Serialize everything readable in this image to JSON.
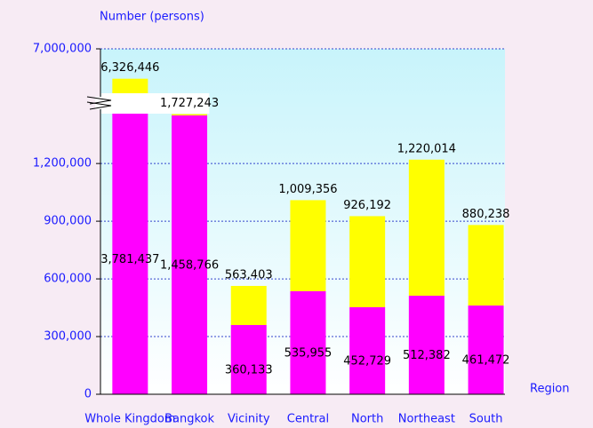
{
  "chart_data": {
    "type": "stacked_bar",
    "y_axis_label": "Number  (persons)",
    "x_axis_label": "Region",
    "categories": [
      "Whole Kingdom",
      "Bangkok",
      "Vicinity",
      "Central",
      "North",
      "Northeast",
      "South"
    ],
    "series": [
      {
        "color": "#ff00ff",
        "values": [
          3781437,
          1458766,
          360133,
          535955,
          452729,
          512382,
          461472
        ],
        "value_labels": [
          "3,781,437",
          "1,458,766",
          "360,133",
          "535,955",
          "452,729",
          "512,382",
          "461,472"
        ]
      },
      {
        "color": "#ffff00",
        "values": [
          2545009,
          268477,
          203270,
          473401,
          473463,
          707632,
          418766
        ]
      }
    ],
    "totals": [
      "6,326,446",
      "1,727,243",
      "563,403",
      "1,009,356",
      "926,192",
      "1,220,014",
      "880,238"
    ],
    "ylim": [
      0,
      7000000
    ],
    "axis_break": [
      1450000,
      6000000
    ],
    "yticks": [
      0,
      {
        "value": 300000,
        "label": "300,000"
      },
      {
        "value": 600000,
        "label": "600,000"
      },
      {
        "value": 900000,
        "label": "900,000"
      },
      {
        "value": 1200000,
        "label": "1,200,000"
      },
      {
        "value": 7000000,
        "label": "7,000,000"
      }
    ],
    "grid": true
  }
}
